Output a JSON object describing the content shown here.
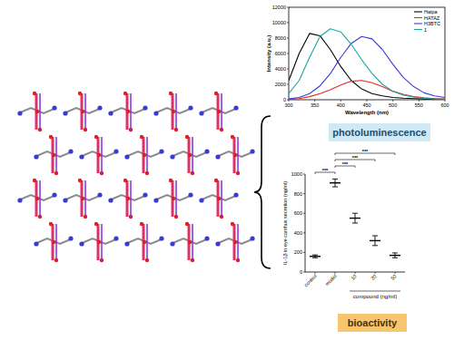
{
  "chart_data": [
    {
      "type": "line",
      "x_label": "Wavelength (nm)",
      "y_label": "Intensity (a.u.)",
      "x": [
        300,
        320,
        340,
        360,
        380,
        400,
        420,
        440,
        460,
        480,
        500,
        520,
        540,
        560,
        580,
        600
      ],
      "xlim": [
        300,
        600
      ],
      "xticks": [
        300,
        350,
        400,
        450,
        500,
        550,
        600
      ],
      "ylim": [
        0,
        12000
      ],
      "yticks": [
        0,
        2000,
        4000,
        6000,
        8000,
        10000,
        12000
      ],
      "legend": "upper right",
      "series": [
        {
          "name": "Hatpa",
          "color": "#000000",
          "values": [
            2500,
            6000,
            8600,
            8300,
            6500,
            4300,
            2500,
            1400,
            800,
            500,
            300,
            200,
            150,
            100,
            80,
            60
          ]
        },
        {
          "name": "HATAZ",
          "color": "#e8251f",
          "values": [
            50,
            150,
            400,
            800,
            1300,
            1900,
            2400,
            2500,
            2200,
            1700,
            1100,
            700,
            400,
            250,
            150,
            100
          ]
        },
        {
          "name": "H3BTC",
          "color": "#3b3bd9",
          "values": [
            100,
            300,
            800,
            1800,
            3400,
            5500,
            7300,
            8200,
            7900,
            6500,
            4600,
            2900,
            1700,
            900,
            500,
            300
          ]
        },
        {
          "name": "1",
          "color": "#1aa6a6",
          "values": [
            800,
            2500,
            5500,
            8200,
            9200,
            8800,
            7200,
            5200,
            3400,
            2000,
            1100,
            600,
            350,
            200,
            120,
            80
          ]
        }
      ]
    },
    {
      "type": "errorbar",
      "x_label": "compound (ng/ml)",
      "y_label": "IL-1β in eye canthus secretion (ng/ml)",
      "categories": [
        "control",
        "model",
        "10",
        "20",
        "50"
      ],
      "values": [
        160,
        910,
        550,
        320,
        170
      ],
      "errors": [
        15,
        40,
        50,
        50,
        25
      ],
      "color": "#000000",
      "ylim": [
        0,
        1000
      ],
      "yticks": [
        0,
        200,
        400,
        600,
        800,
        1000
      ],
      "annotations": [
        {
          "groups": [
            "control",
            "model"
          ],
          "label": "***"
        },
        {
          "groups": [
            "model",
            "10"
          ],
          "label": "***"
        },
        {
          "groups": [
            "model",
            "20"
          ],
          "label": "***"
        },
        {
          "groups": [
            "model",
            "50"
          ],
          "label": "***"
        }
      ]
    }
  ],
  "labels": {
    "photoluminescence": "photoluminescence",
    "bioactivity": "bioactivity"
  }
}
